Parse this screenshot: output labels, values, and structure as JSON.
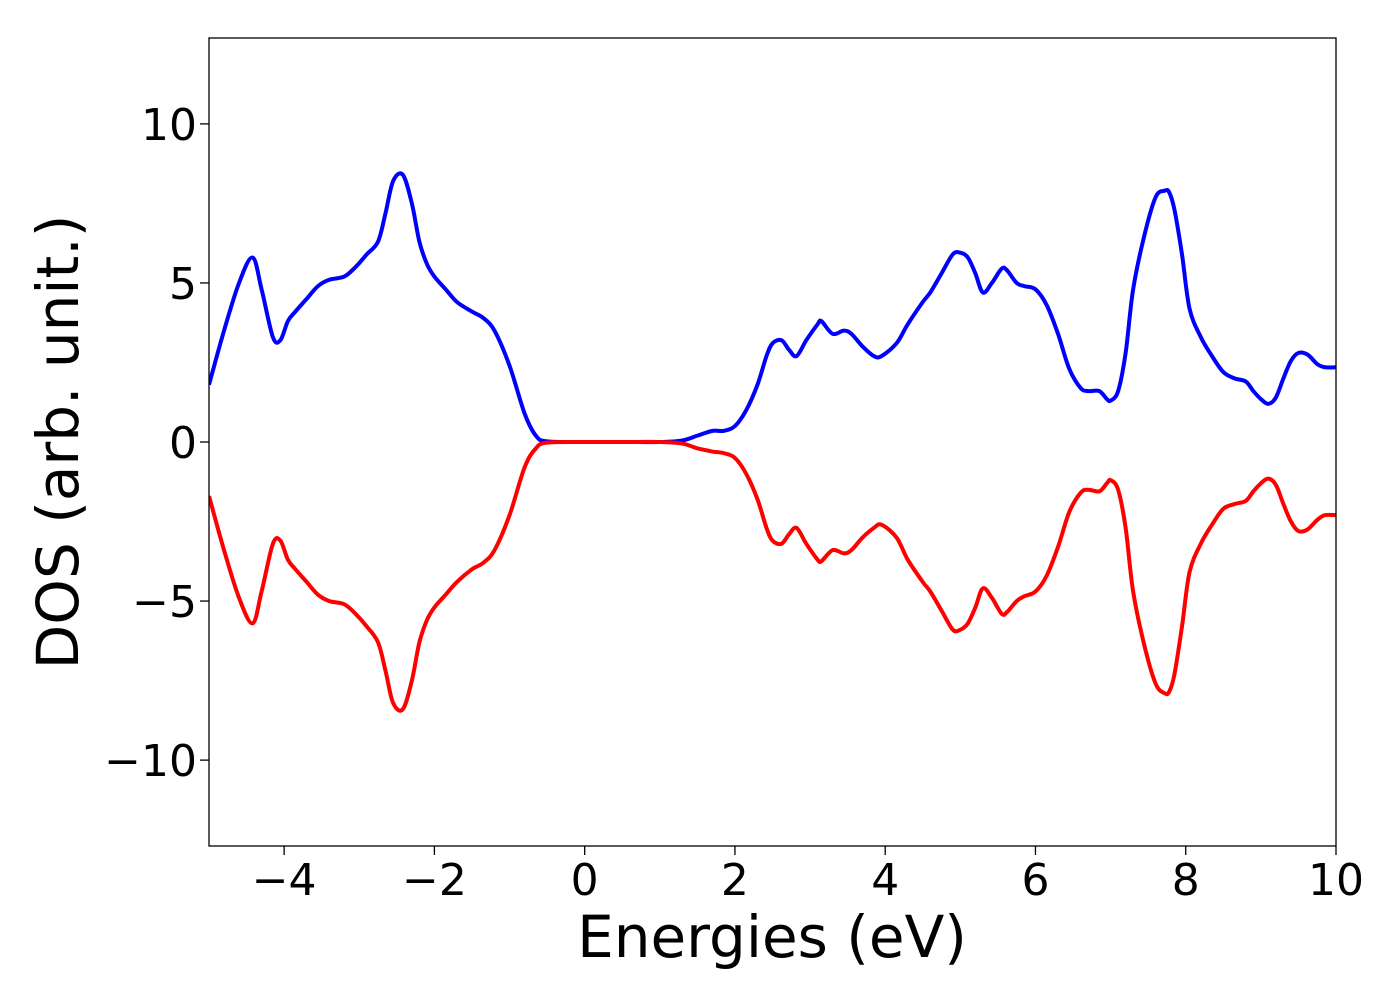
{
  "chart_data": {
    "type": "line",
    "title": "",
    "xlabel": "Energies (eV)",
    "ylabel": "DOS (arb. unit.)",
    "xlim": [
      -5,
      10
    ],
    "ylim": [
      -12.7,
      12.7
    ],
    "xticks": [
      -4,
      -2,
      0,
      2,
      4,
      6,
      8,
      10
    ],
    "xtick_labels": [
      "−4",
      "−2",
      "0",
      "2",
      "4",
      "6",
      "8",
      "10"
    ],
    "yticks": [
      10,
      5,
      0,
      -5,
      -10
    ],
    "ytick_labels": [
      "10",
      "5",
      "0",
      "−5",
      "−10"
    ],
    "grid": false,
    "legend": "none",
    "series": [
      {
        "color": "#0000ff",
        "x": [
          -5.0,
          -4.8,
          -4.6,
          -4.42,
          -4.3,
          -4.15,
          -4.05,
          -3.95,
          -3.85,
          -3.7,
          -3.55,
          -3.4,
          -3.2,
          -3.05,
          -2.9,
          -2.75,
          -2.65,
          -2.55,
          -2.42,
          -2.3,
          -2.2,
          -2.1,
          -2.0,
          -1.85,
          -1.7,
          -1.5,
          -1.35,
          -1.2,
          -1.0,
          -0.8,
          -0.65,
          -0.5,
          0.0,
          0.5,
          1.0,
          1.3,
          1.5,
          1.7,
          1.85,
          2.0,
          2.15,
          2.3,
          2.42,
          2.5,
          2.62,
          2.72,
          2.82,
          2.95,
          3.1,
          3.15,
          3.3,
          3.45,
          3.55,
          3.7,
          3.85,
          3.95,
          4.15,
          4.3,
          4.5,
          4.6,
          4.75,
          4.9,
          5.0,
          5.1,
          5.2,
          5.3,
          5.42,
          5.55,
          5.62,
          5.75,
          5.85,
          6.0,
          6.15,
          6.3,
          6.45,
          6.6,
          6.7,
          6.85,
          6.95,
          7.0,
          7.1,
          7.2,
          7.3,
          7.45,
          7.6,
          7.72,
          7.78,
          7.85,
          7.95,
          8.05,
          8.2,
          8.35,
          8.5,
          8.65,
          8.8,
          8.9,
          9.0,
          9.1,
          9.2,
          9.3,
          9.4,
          9.5,
          9.62,
          9.75,
          9.85,
          10.0
        ],
        "y": [
          1.8,
          3.5,
          5.0,
          5.8,
          4.8,
          3.3,
          3.2,
          3.8,
          4.1,
          4.5,
          4.9,
          5.1,
          5.2,
          5.5,
          5.9,
          6.3,
          7.2,
          8.2,
          8.4,
          7.5,
          6.3,
          5.6,
          5.2,
          4.8,
          4.4,
          4.1,
          3.9,
          3.5,
          2.4,
          0.9,
          0.2,
          0.02,
          0.0,
          0.0,
          0.0,
          0.05,
          0.2,
          0.35,
          0.35,
          0.5,
          1.0,
          1.8,
          2.7,
          3.1,
          3.2,
          2.9,
          2.7,
          3.2,
          3.7,
          3.8,
          3.4,
          3.5,
          3.4,
          3.0,
          2.7,
          2.7,
          3.1,
          3.7,
          4.4,
          4.7,
          5.3,
          5.9,
          5.95,
          5.8,
          5.3,
          4.7,
          5.0,
          5.45,
          5.4,
          5.0,
          4.9,
          4.8,
          4.3,
          3.4,
          2.3,
          1.7,
          1.6,
          1.6,
          1.35,
          1.3,
          1.6,
          2.8,
          4.8,
          6.5,
          7.7,
          7.9,
          7.85,
          7.3,
          5.9,
          4.2,
          3.3,
          2.7,
          2.2,
          2.0,
          1.9,
          1.6,
          1.35,
          1.2,
          1.4,
          2.0,
          2.55,
          2.8,
          2.75,
          2.45,
          2.35,
          2.35
        ]
      },
      {
        "color": "#ff0000",
        "x": [
          -5.0,
          -4.8,
          -4.6,
          -4.42,
          -4.3,
          -4.15,
          -4.05,
          -3.95,
          -3.85,
          -3.7,
          -3.55,
          -3.4,
          -3.2,
          -3.05,
          -2.9,
          -2.75,
          -2.65,
          -2.55,
          -2.42,
          -2.3,
          -2.2,
          -2.1,
          -2.0,
          -1.85,
          -1.7,
          -1.5,
          -1.35,
          -1.2,
          -1.0,
          -0.8,
          -0.65,
          -0.5,
          0.0,
          0.5,
          1.0,
          1.3,
          1.5,
          1.7,
          1.85,
          2.0,
          2.15,
          2.3,
          2.42,
          2.5,
          2.62,
          2.72,
          2.82,
          2.95,
          3.1,
          3.15,
          3.3,
          3.45,
          3.55,
          3.7,
          3.85,
          3.95,
          4.15,
          4.3,
          4.5,
          4.6,
          4.75,
          4.9,
          5.0,
          5.1,
          5.2,
          5.3,
          5.42,
          5.55,
          5.62,
          5.75,
          5.85,
          6.0,
          6.15,
          6.3,
          6.45,
          6.6,
          6.7,
          6.85,
          6.95,
          7.0,
          7.1,
          7.2,
          7.3,
          7.45,
          7.6,
          7.72,
          7.78,
          7.85,
          7.95,
          8.05,
          8.2,
          8.35,
          8.5,
          8.65,
          8.8,
          8.9,
          9.0,
          9.1,
          9.2,
          9.3,
          9.4,
          9.5,
          9.62,
          9.75,
          9.85,
          10.0
        ],
        "y": [
          -1.7,
          -3.4,
          -4.9,
          -5.7,
          -4.7,
          -3.2,
          -3.1,
          -3.7,
          -4.0,
          -4.4,
          -4.8,
          -5.0,
          -5.1,
          -5.4,
          -5.8,
          -6.3,
          -7.2,
          -8.2,
          -8.4,
          -7.5,
          -6.3,
          -5.6,
          -5.2,
          -4.8,
          -4.4,
          -4.0,
          -3.8,
          -3.4,
          -2.3,
          -0.8,
          -0.2,
          -0.02,
          0.0,
          0.0,
          0.0,
          -0.05,
          -0.2,
          -0.3,
          -0.35,
          -0.5,
          -1.0,
          -1.8,
          -2.7,
          -3.1,
          -3.2,
          -2.9,
          -2.7,
          -3.2,
          -3.7,
          -3.75,
          -3.4,
          -3.5,
          -3.4,
          -3.0,
          -2.7,
          -2.6,
          -3.0,
          -3.7,
          -4.4,
          -4.7,
          -5.3,
          -5.9,
          -5.9,
          -5.7,
          -5.2,
          -4.6,
          -4.9,
          -5.4,
          -5.35,
          -5.0,
          -4.85,
          -4.7,
          -4.2,
          -3.3,
          -2.2,
          -1.6,
          -1.5,
          -1.55,
          -1.3,
          -1.2,
          -1.5,
          -2.7,
          -4.7,
          -6.4,
          -7.6,
          -7.9,
          -7.85,
          -7.3,
          -5.8,
          -4.1,
          -3.2,
          -2.6,
          -2.1,
          -1.95,
          -1.85,
          -1.55,
          -1.3,
          -1.15,
          -1.35,
          -1.95,
          -2.5,
          -2.8,
          -2.75,
          -2.45,
          -2.3,
          -2.3
        ]
      }
    ]
  }
}
